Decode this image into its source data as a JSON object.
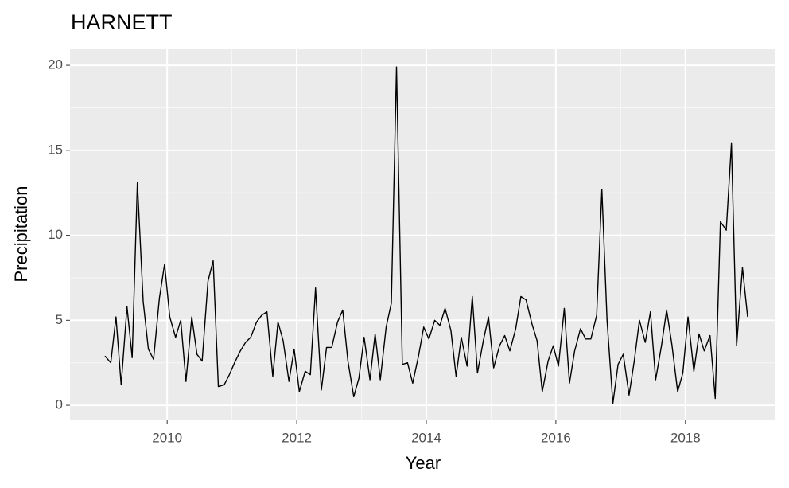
{
  "chart_data": {
    "type": "line",
    "title": "HARNETT",
    "x_label": "Year",
    "y_label": "Precipitation",
    "x": [
      2009.04,
      2009.13,
      2009.21,
      2009.29,
      2009.38,
      2009.46,
      2009.54,
      2009.63,
      2009.71,
      2009.79,
      2009.88,
      2009.96,
      2010.04,
      2010.13,
      2010.21,
      2010.29,
      2010.38,
      2010.46,
      2010.54,
      2010.63,
      2010.71,
      2010.79,
      2010.88,
      2010.96,
      2011.04,
      2011.13,
      2011.21,
      2011.29,
      2011.38,
      2011.46,
      2011.54,
      2011.63,
      2011.71,
      2011.79,
      2011.88,
      2011.96,
      2012.04,
      2012.13,
      2012.21,
      2012.29,
      2012.38,
      2012.46,
      2012.54,
      2012.63,
      2012.71,
      2012.79,
      2012.88,
      2012.96,
      2013.04,
      2013.13,
      2013.21,
      2013.29,
      2013.38,
      2013.46,
      2013.54,
      2013.63,
      2013.71,
      2013.79,
      2013.88,
      2013.96,
      2014.04,
      2014.13,
      2014.21,
      2014.29,
      2014.38,
      2014.46,
      2014.54,
      2014.63,
      2014.71,
      2014.79,
      2014.88,
      2014.96,
      2015.04,
      2015.13,
      2015.21,
      2015.29,
      2015.38,
      2015.46,
      2015.54,
      2015.63,
      2015.71,
      2015.79,
      2015.88,
      2015.96,
      2016.04,
      2016.13,
      2016.21,
      2016.29,
      2016.38,
      2016.46,
      2016.54,
      2016.63,
      2016.71,
      2016.79,
      2016.88,
      2016.96,
      2017.04,
      2017.13,
      2017.21,
      2017.29,
      2017.38,
      2017.46,
      2017.54,
      2017.63,
      2017.71,
      2017.79,
      2017.88,
      2017.96,
      2018.04,
      2018.13,
      2018.21,
      2018.29,
      2018.38,
      2018.46,
      2018.54,
      2018.63,
      2018.71,
      2018.79,
      2018.88,
      2018.96
    ],
    "series": [
      {
        "name": "Precipitation",
        "color": "#000000",
        "values": [
          2.9,
          2.5,
          5.2,
          1.2,
          5.8,
          2.8,
          13.1,
          6.1,
          3.3,
          2.7,
          6.3,
          8.3,
          5.2,
          4.0,
          5.0,
          1.4,
          5.2,
          3.0,
          2.6,
          7.3,
          8.5,
          1.1,
          1.2,
          1.8,
          2.5,
          3.2,
          3.7,
          4.0,
          4.9,
          5.3,
          5.5,
          1.7,
          4.9,
          3.8,
          1.4,
          3.3,
          0.8,
          2.0,
          1.8,
          6.9,
          0.9,
          3.4,
          3.4,
          4.9,
          5.6,
          2.6,
          0.5,
          1.6,
          4.0,
          1.5,
          4.2,
          1.5,
          4.6,
          6.0,
          19.9,
          2.4,
          2.5,
          1.3,
          2.9,
          4.6,
          3.9,
          5.0,
          4.7,
          5.7,
          4.4,
          1.7,
          4.0,
          2.3,
          6.4,
          1.9,
          3.8,
          5.2,
          2.2,
          3.5,
          4.1,
          3.2,
          4.5,
          6.4,
          6.2,
          4.8,
          3.8,
          0.8,
          2.6,
          3.5,
          2.3,
          5.7,
          1.3,
          3.2,
          4.5,
          3.9,
          3.9,
          5.3,
          12.7,
          5.0,
          0.1,
          2.4,
          3.0,
          0.6,
          2.6,
          5.0,
          3.7,
          5.5,
          1.5,
          3.5,
          5.6,
          3.6,
          0.8,
          1.9,
          5.2,
          2.0,
          4.2,
          3.2,
          4.1,
          0.4,
          10.8,
          10.3,
          15.4,
          3.5,
          8.1,
          5.2
        ]
      }
    ],
    "xlim": [
      2008.5,
      2019.39
    ],
    "xticks": [
      2010,
      2012,
      2014,
      2016,
      2018
    ],
    "ylim": [
      -0.84,
      20.94
    ],
    "yticks": [
      0,
      5,
      10,
      15,
      20
    ],
    "grid": true
  }
}
